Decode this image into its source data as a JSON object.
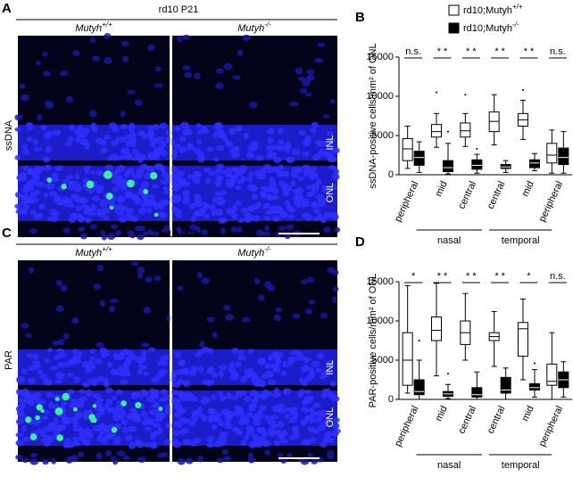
{
  "image_panels": [
    {
      "letter": "A",
      "title": "rd10 P21",
      "left": {
        "gene": "Mutyh",
        "sup": "+/+"
      },
      "right": {
        "gene": "Mutyh",
        "sup": "-/-"
      },
      "stain": "ssDNA",
      "layers": [
        "INL",
        "ONL"
      ]
    },
    {
      "letter": "C",
      "title": "rd10 P21",
      "left": {
        "gene": "Mutyh",
        "sup": "+/+"
      },
      "right": {
        "gene": "Mutyh",
        "sup": "-/-"
      },
      "stain": "PAR",
      "layers": [
        "INL",
        "ONL"
      ]
    }
  ],
  "chart_data": [
    {
      "type": "box",
      "letter": "B",
      "ylabel": "ssDNA-positive cells/mm² of ONL",
      "ylim": [
        0,
        15000
      ],
      "yticks": [
        0,
        5000,
        10000,
        15000
      ],
      "categories": [
        "peripheral",
        "mid",
        "central",
        "central",
        "mid",
        "peripheral"
      ],
      "annotations": [
        "n.s.",
        "* *",
        "* *",
        "* *",
        "* *",
        "n.s."
      ],
      "group_labels": [
        "nasal",
        "temporal"
      ],
      "legend": "upper right",
      "series": [
        {
          "name": "rd10;Mutyh",
          "superscript": "+/+",
          "color": "#ffffff",
          "stats": [
            {
              "min": 800,
              "q1": 1800,
              "median": 3300,
              "q3": 4600,
              "max": 6200,
              "outliers": []
            },
            {
              "min": 3500,
              "q1": 4800,
              "median": 5500,
              "q3": 6400,
              "max": 7800,
              "outliers": [
                10500
              ]
            },
            {
              "min": 3600,
              "q1": 4800,
              "median": 5600,
              "q3": 6600,
              "max": 7800,
              "outliers": [
                10200
              ]
            },
            {
              "min": 3800,
              "q1": 5500,
              "median": 6800,
              "q3": 8000,
              "max": 10200,
              "outliers": []
            },
            {
              "min": 4500,
              "q1": 6200,
              "median": 7000,
              "q3": 7800,
              "max": 9500,
              "outliers": [
                10800
              ]
            },
            {
              "min": 200,
              "q1": 1500,
              "median": 2500,
              "q3": 4000,
              "max": 5700,
              "outliers": []
            }
          ]
        },
        {
          "name": "rd10;Mutyh",
          "superscript": "-/-",
          "color": "#000000",
          "stats": [
            {
              "min": 300,
              "q1": 1200,
              "median": 2200,
              "q3": 3000,
              "max": 4200,
              "outliers": []
            },
            {
              "min": 100,
              "q1": 400,
              "median": 900,
              "q3": 1800,
              "max": 4000,
              "outliers": [
                5500
              ]
            },
            {
              "min": 200,
              "q1": 700,
              "median": 1200,
              "q3": 1900,
              "max": 2600,
              "outliers": [
                3300
              ]
            },
            {
              "min": 300,
              "q1": 800,
              "median": 1000,
              "q3": 1300,
              "max": 1800,
              "outliers": []
            },
            {
              "min": 500,
              "q1": 900,
              "median": 1500,
              "q3": 1900,
              "max": 2700,
              "outliers": []
            },
            {
              "min": 200,
              "q1": 1300,
              "median": 2200,
              "q3": 3400,
              "max": 5500,
              "outliers": []
            }
          ]
        }
      ]
    },
    {
      "type": "box",
      "letter": "D",
      "ylabel": "PAR-positive cells/mm² of ONL",
      "ylim": [
        0,
        15000
      ],
      "yticks": [
        0,
        5000,
        10000,
        15000
      ],
      "categories": [
        "peripheral",
        "mid",
        "central",
        "central",
        "mid",
        "peripheral"
      ],
      "annotations": [
        "*",
        "* *",
        "* *",
        "* *",
        "*",
        "n.s."
      ],
      "group_labels": [
        "nasal",
        "temporal"
      ],
      "series": [
        {
          "color": "#ffffff",
          "stats": [
            {
              "min": 800,
              "q1": 1800,
              "median": 5000,
              "q3": 8500,
              "max": 14500,
              "outliers": []
            },
            {
              "min": 3000,
              "q1": 7500,
              "median": 8800,
              "q3": 10500,
              "max": 14800,
              "outliers": []
            },
            {
              "min": 5000,
              "q1": 7000,
              "median": 8500,
              "q3": 10000,
              "max": 13500,
              "outliers": []
            },
            {
              "min": 4200,
              "q1": 7500,
              "median": 8000,
              "q3": 8500,
              "max": 11200,
              "outliers": []
            },
            {
              "min": 2500,
              "q1": 5500,
              "median": 9000,
              "q3": 9800,
              "max": 12800,
              "outliers": []
            },
            {
              "min": 0,
              "q1": 1800,
              "median": 2300,
              "q3": 4500,
              "max": 8500,
              "outliers": []
            }
          ]
        },
        {
          "color": "#000000",
          "stats": [
            {
              "min": 0,
              "q1": 600,
              "median": 1000,
              "q3": 2500,
              "max": 5000,
              "outliers": [
                7500
              ]
            },
            {
              "min": 100,
              "q1": 400,
              "median": 700,
              "q3": 1000,
              "max": 1900,
              "outliers": [
                3300
              ]
            },
            {
              "min": 0,
              "q1": 300,
              "median": 600,
              "q3": 1500,
              "max": 3500,
              "outliers": []
            },
            {
              "min": 0,
              "q1": 800,
              "median": 1200,
              "q3": 2800,
              "max": 4000,
              "outliers": []
            },
            {
              "min": 300,
              "q1": 1200,
              "median": 1500,
              "q3": 2000,
              "max": 3800,
              "outliers": [
                4600
              ]
            },
            {
              "min": 300,
              "q1": 1500,
              "median": 2500,
              "q3": 3500,
              "max": 4800,
              "outliers": []
            }
          ]
        }
      ]
    }
  ]
}
